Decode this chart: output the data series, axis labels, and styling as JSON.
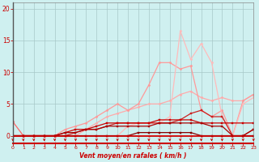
{
  "xlabel": "Vent moyen/en rafales ( km/h )",
  "background_color": "#cff0f0",
  "grid_color": "#a8c8c8",
  "x_ticks": [
    0,
    1,
    2,
    3,
    4,
    5,
    6,
    7,
    8,
    9,
    10,
    11,
    12,
    13,
    14,
    15,
    16,
    17,
    18,
    19,
    20,
    21,
    22,
    23
  ],
  "y_ticks": [
    0,
    5,
    10,
    15,
    20
  ],
  "ylim": [
    -1.2,
    21
  ],
  "xlim": [
    0,
    23
  ],
  "lines": [
    {
      "y": [
        2.2,
        0,
        0,
        0,
        0,
        0,
        0,
        0,
        0,
        0,
        0,
        0,
        0,
        0,
        0,
        0,
        0,
        0,
        0,
        0,
        0,
        0,
        0,
        0
      ],
      "color": "#ff6666",
      "lw": 0.9,
      "marker": "D",
      "ms": 1.5
    },
    {
      "y": [
        0,
        0,
        0,
        0,
        0,
        0,
        0,
        1,
        2,
        3,
        3.5,
        4,
        4.5,
        5,
        5,
        5.5,
        6.5,
        7,
        6,
        5.5,
        6,
        5.5,
        5.5,
        6.5
      ],
      "color": "#ffaaaa",
      "lw": 0.9,
      "marker": "D",
      "ms": 1.5
    },
    {
      "y": [
        0,
        0,
        0,
        0,
        0,
        1,
        1.5,
        2,
        3,
        4,
        5,
        4,
        5,
        8,
        11.5,
        11.5,
        10.5,
        11,
        4,
        3,
        4,
        0,
        5.5,
        6.5
      ],
      "color": "#ff9999",
      "lw": 0.9,
      "marker": "D",
      "ms": 1.5
    },
    {
      "y": [
        0,
        0,
        0,
        0,
        0,
        0,
        0,
        0,
        0,
        0,
        0,
        1.5,
        2,
        2,
        2,
        3,
        16.5,
        12,
        14.5,
        11.5,
        3,
        0,
        5,
        6
      ],
      "color": "#ffbbbb",
      "lw": 0.9,
      "marker": "D",
      "ms": 1.5
    },
    {
      "y": [
        0,
        0,
        0,
        0,
        0,
        0,
        0.5,
        1,
        1,
        1.5,
        2,
        2,
        2,
        2,
        2,
        2,
        2.5,
        3.5,
        4,
        3,
        3,
        0,
        0,
        1
      ],
      "color": "#cc2222",
      "lw": 0.9,
      "marker": "s",
      "ms": 1.5
    },
    {
      "y": [
        0,
        0,
        0,
        0,
        0,
        0.5,
        1,
        1,
        1.5,
        2,
        2,
        2,
        2,
        2,
        2.5,
        2.5,
        2.5,
        2.5,
        2,
        2,
        2,
        2,
        2,
        2
      ],
      "color": "#cc0000",
      "lw": 0.9,
      "marker": "s",
      "ms": 1.5
    },
    {
      "y": [
        0,
        0,
        0,
        0,
        0,
        0.5,
        0.5,
        1,
        1,
        1.5,
        1.5,
        1.5,
        1.5,
        1.5,
        2,
        2,
        2,
        2,
        2,
        1.5,
        1.5,
        0,
        0,
        1
      ],
      "color": "#aa0000",
      "lw": 0.9,
      "marker": "s",
      "ms": 1.5
    },
    {
      "y": [
        0,
        0,
        0,
        0,
        0,
        0,
        0,
        0,
        0,
        0,
        0,
        0,
        0.5,
        0.5,
        0.5,
        0.5,
        0.5,
        0.5,
        0,
        0,
        0,
        0,
        0,
        0
      ],
      "color": "#880000",
      "lw": 0.9,
      "marker": "s",
      "ms": 1.5
    }
  ],
  "arrows_color": "#cc0000",
  "yaxis_line_color": "#555555",
  "bottom_bar_color": "#cc0000"
}
